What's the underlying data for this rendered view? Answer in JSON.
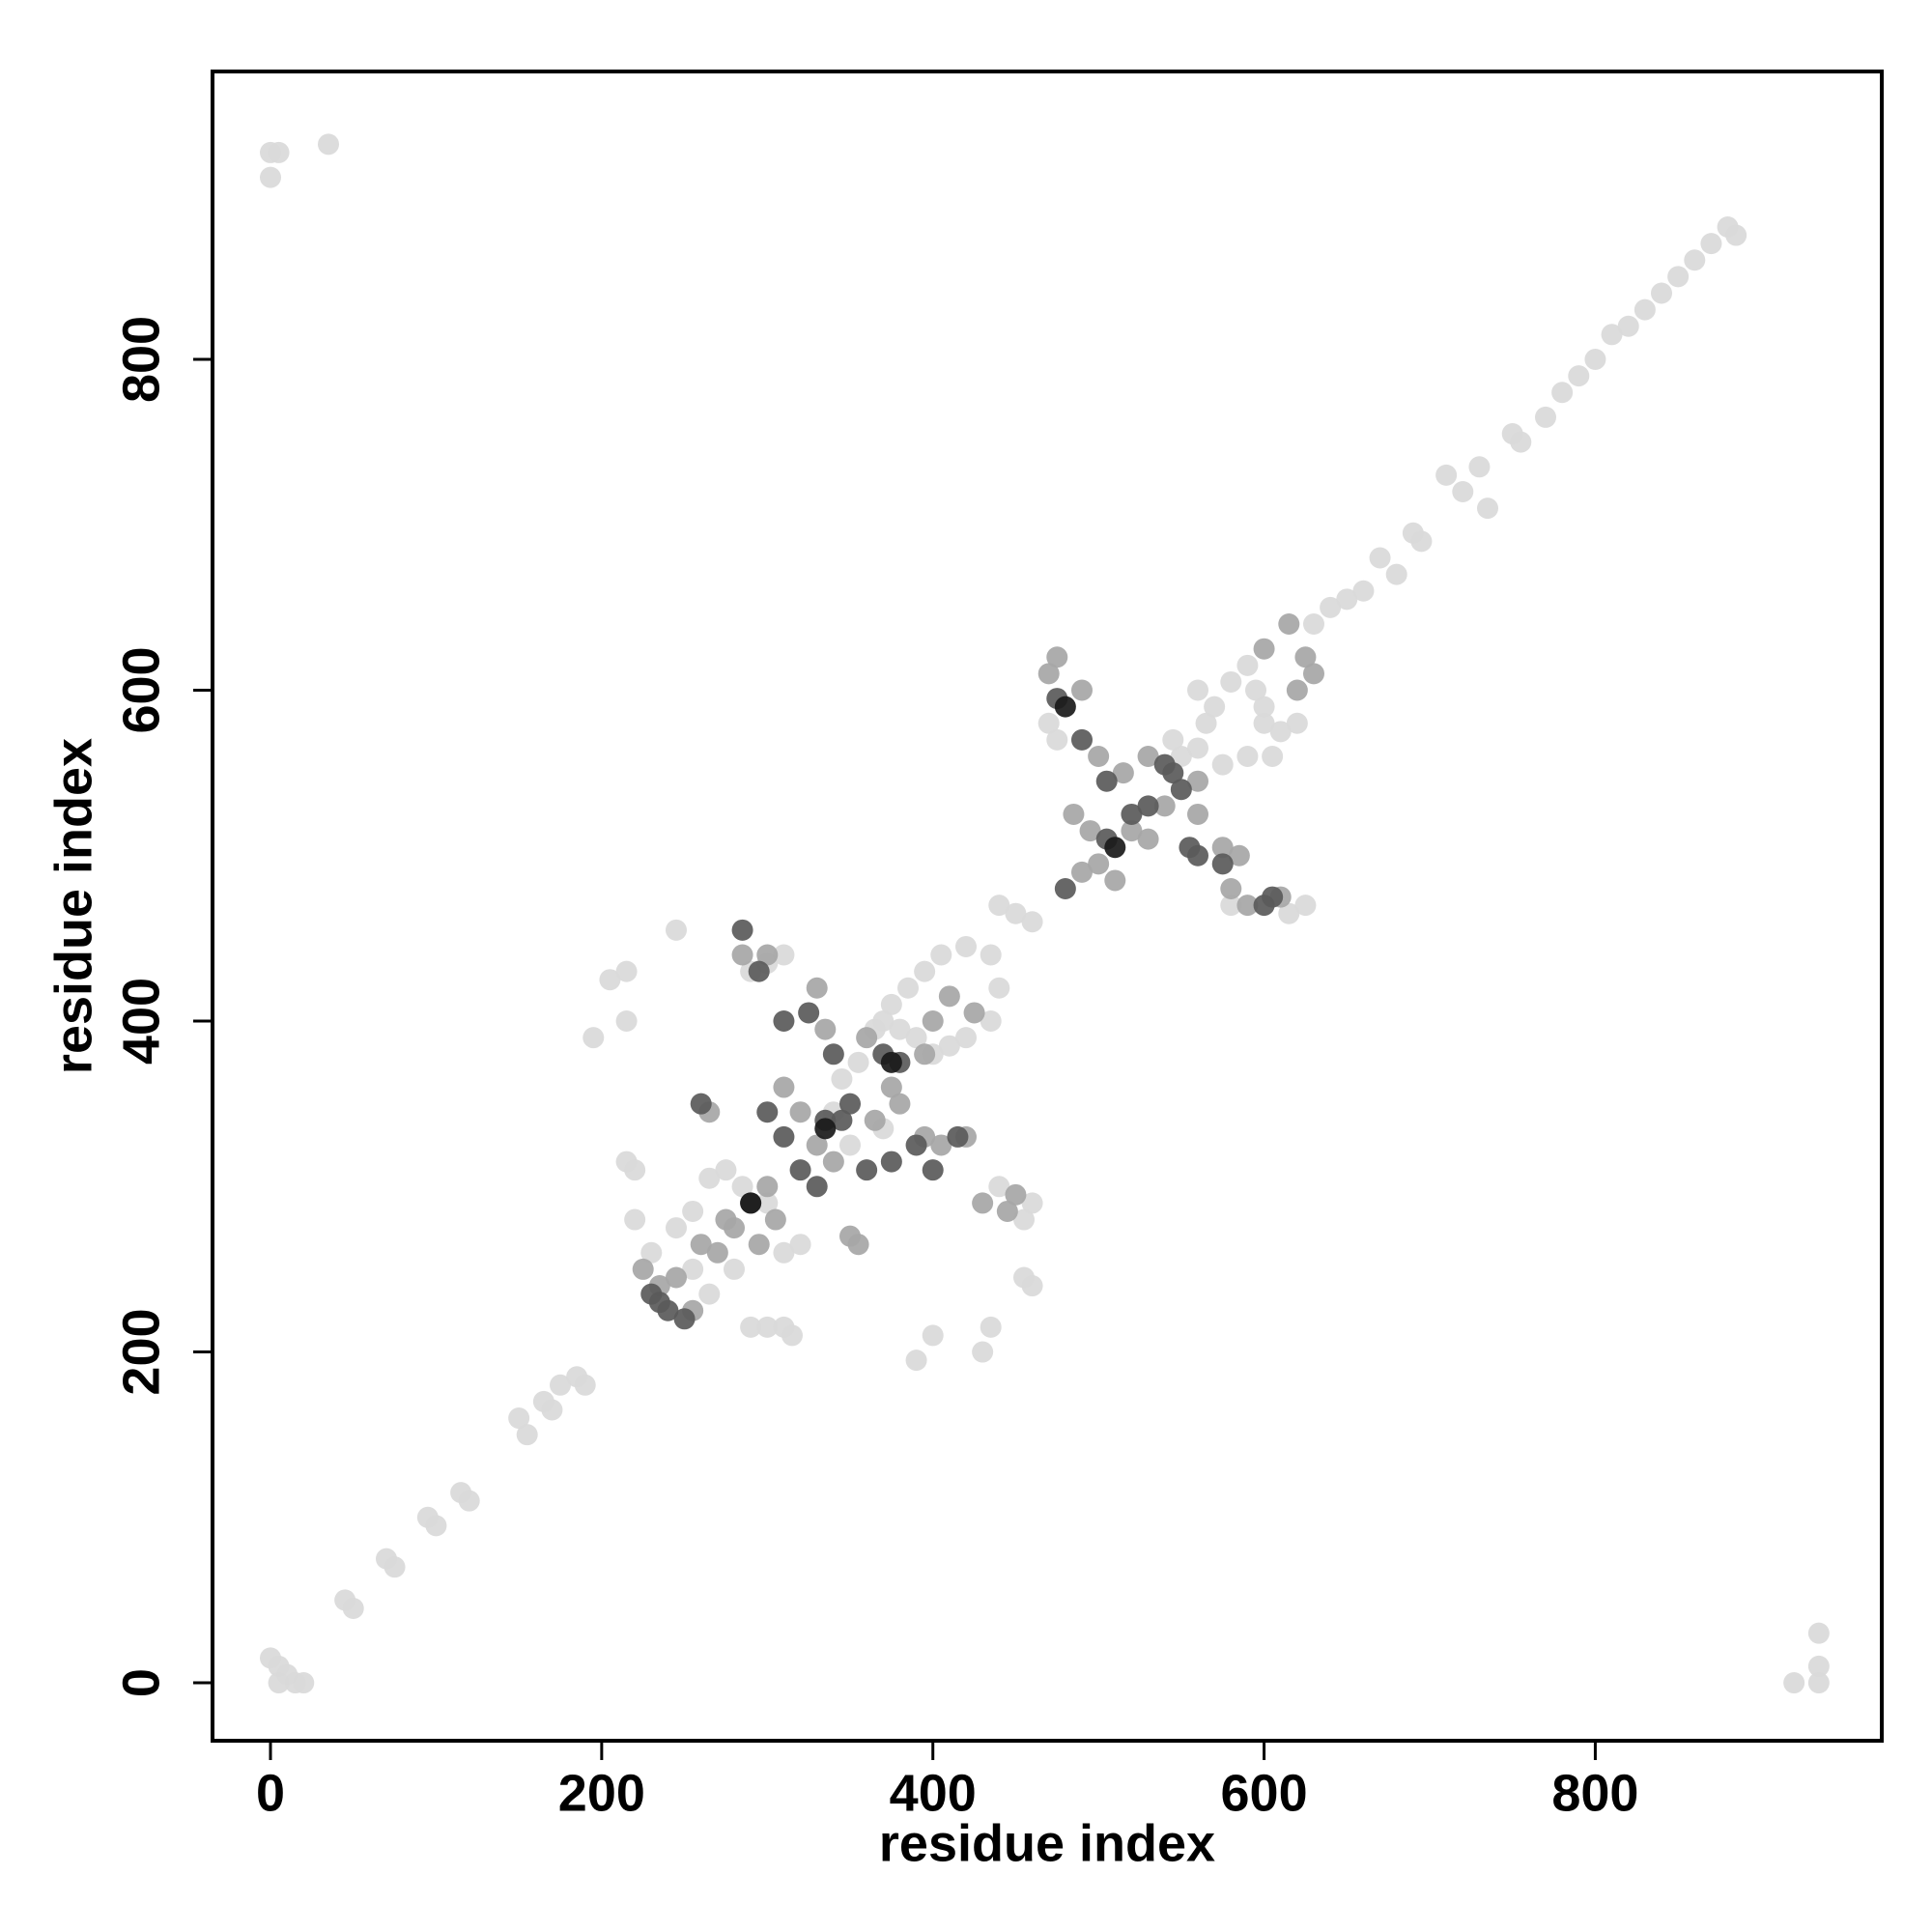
{
  "chart_data": {
    "type": "scatter",
    "x_label": "residue index",
    "y_label": "residue index",
    "xlim": [
      -35,
      973
    ],
    "ylim": [
      -35,
      974
    ],
    "xticks": [
      0,
      200,
      400,
      600,
      800
    ],
    "yticks": [
      0,
      200,
      400,
      600,
      800
    ],
    "grid": false,
    "series": [
      {
        "color": "#d9d9d9",
        "x": [
          0,
          5,
          35,
          0,
          0,
          5,
          10,
          15,
          20,
          5,
          935,
          920,
          935,
          935,
          45,
          50,
          70,
          75,
          95,
          100,
          115,
          120,
          150,
          155,
          165,
          170,
          175,
          185,
          190,
          440,
          450,
          460,
          670,
          680,
          690,
          695,
          710,
          720,
          730,
          735,
          750,
          755,
          770,
          780,
          790,
          800,
          810,
          820,
          830,
          840,
          850,
          860,
          870,
          880,
          885,
          630,
          640,
          650,
          660,
          195,
          205,
          215,
          245,
          215,
          220,
          215,
          220,
          290,
          300,
          315,
          310,
          390,
          400,
          430,
          435,
          460,
          455,
          230,
          245,
          255,
          265,
          275,
          285,
          300,
          310,
          320,
          255,
          265,
          280,
          345,
          355,
          365,
          375,
          385,
          395,
          405,
          420,
          435,
          440,
          435,
          420,
          410,
          400,
          390,
          380,
          370,
          300,
          310,
          290,
          440,
          455,
          460,
          350,
          340,
          370,
          470,
          475,
          565,
          570,
          580,
          590,
          595,
          600,
          610,
          620,
          590,
          575,
          560,
          550,
          580,
          615,
          625,
          560,
          600,
          605,
          545
        ],
        "y": [
          925,
          925,
          930,
          910,
          15,
          10,
          5,
          0,
          0,
          0,
          30,
          0,
          0,
          10,
          50,
          45,
          75,
          70,
          100,
          95,
          115,
          110,
          160,
          150,
          170,
          165,
          180,
          185,
          180,
          470,
          465,
          460,
          680,
          670,
          695,
          690,
          730,
          720,
          735,
          710,
          755,
          750,
          765,
          780,
          790,
          800,
          815,
          820,
          830,
          840,
          850,
          860,
          870,
          880,
          875,
          640,
          650,
          655,
          660,
          390,
          425,
          430,
          455,
          400,
          310,
          315,
          280,
          215,
          215,
          210,
          215,
          195,
          210,
          200,
          215,
          240,
          245,
          260,
          275,
          285,
          305,
          310,
          300,
          290,
          260,
          265,
          250,
          235,
          250,
          365,
          375,
          395,
          410,
          420,
          430,
          440,
          445,
          440,
          420,
          400,
          390,
          385,
          380,
          390,
          395,
          400,
          435,
          440,
          430,
          300,
          280,
          290,
          325,
          345,
          335,
          580,
          570,
          580,
          590,
          605,
          615,
          600,
          580,
          575,
          580,
          560,
          555,
          565,
          560,
          470,
          465,
          470,
          600,
          590,
          560,
          570
        ]
      },
      {
        "color": "#a6a6a6",
        "x": [
          225,
          235,
          245,
          255,
          260,
          270,
          280,
          275,
          300,
          305,
          295,
          265,
          310,
          320,
          330,
          335,
          350,
          355,
          330,
          340,
          365,
          380,
          395,
          405,
          420,
          430,
          445,
          450,
          360,
          375,
          395,
          400,
          410,
          425,
          300,
          285,
          470,
          475,
          490,
          500,
          515,
          520,
          490,
          500,
          510,
          530,
          560,
          580,
          590,
          610,
          620,
          630,
          625,
          600,
          615,
          575,
          585,
          540,
          495,
          485,
          560,
          530
        ],
        "y": [
          250,
          240,
          245,
          225,
          265,
          260,
          275,
          280,
          300,
          280,
          265,
          345,
          360,
          345,
          420,
          395,
          270,
          265,
          325,
          315,
          340,
          350,
          330,
          325,
          330,
          290,
          285,
          295,
          390,
          360,
          380,
          400,
          415,
          405,
          440,
          440,
          610,
          620,
          600,
          560,
          550,
          515,
          490,
          495,
          485,
          560,
          545,
          480,
          470,
          475,
          600,
          610,
          620,
          625,
          640,
          505,
          500,
          530,
          515,
          525,
          525,
          510
        ]
      },
      {
        "color": "#5a5a5a",
        "x": [
          290,
          335,
          345,
          370,
          380,
          295,
          285,
          310,
          325,
          340,
          350,
          310,
          320,
          230,
          235,
          260,
          300,
          390,
          400,
          415,
          375,
          360,
          330,
          240,
          250,
          475,
          505,
          520,
          545,
          550,
          505,
          490,
          600,
          605,
          560,
          575,
          480,
          530,
          555,
          540
        ],
        "y": [
          290,
          340,
          340,
          380,
          375,
          430,
          455,
          400,
          405,
          380,
          350,
          330,
          310,
          235,
          230,
          350,
          345,
          325,
          310,
          330,
          315,
          310,
          300,
          225,
          220,
          595,
          510,
          525,
          550,
          540,
          545,
          570,
          470,
          475,
          500,
          495,
          480,
          530,
          505,
          555
        ]
      },
      {
        "color": "#1a1a1a",
        "x": [
          290,
          335,
          375,
          480,
          510
        ],
        "y": [
          290,
          335,
          375,
          590,
          505
        ]
      }
    ]
  }
}
